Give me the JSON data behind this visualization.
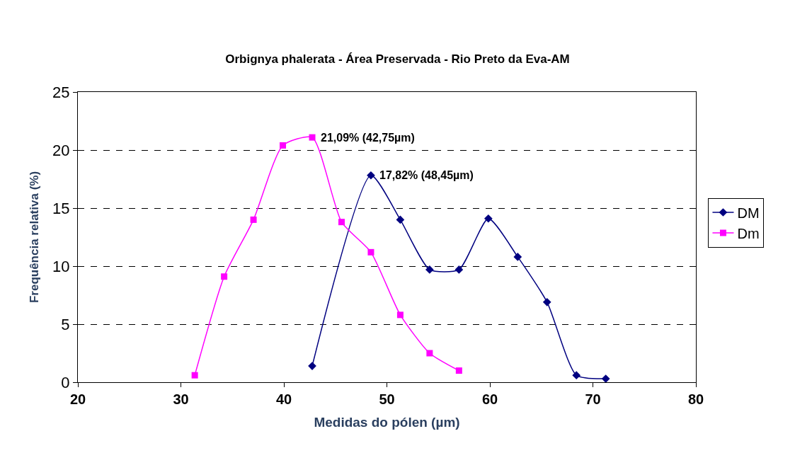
{
  "chart_data": {
    "type": "line",
    "title": "Orbignya phalerata - Área Preservada - Rio Preto da Eva-AM",
    "xlabel": "Medidas do pólen (µm)",
    "ylabel": "Frequência relativa (%)",
    "xlim": [
      20,
      80
    ],
    "xticks": [
      20,
      30,
      40,
      50,
      60,
      70,
      80
    ],
    "ylim": [
      0,
      25
    ],
    "yticks": [
      0,
      5,
      10,
      15,
      20,
      25
    ],
    "grid": "y",
    "legend": "right",
    "series": [
      {
        "name": "DM",
        "color": "#000080",
        "marker": "diamond",
        "x": [
          42.75,
          48.45,
          51.3,
          54.15,
          57.0,
          59.85,
          62.7,
          65.55,
          68.4,
          71.25
        ],
        "values": [
          1.4,
          17.82,
          14.0,
          9.7,
          9.7,
          14.1,
          10.8,
          6.9,
          0.6,
          0.3
        ]
      },
      {
        "name": "Dm",
        "color": "#ff00ff",
        "marker": "square",
        "x": [
          31.35,
          34.2,
          37.05,
          39.9,
          42.75,
          45.6,
          48.45,
          51.3,
          54.15,
          57.0
        ],
        "values": [
          0.6,
          9.1,
          14.0,
          20.4,
          21.09,
          13.8,
          11.2,
          5.8,
          2.5,
          1.0
        ]
      }
    ],
    "annotations": [
      {
        "text": "21,09% (42,75µm)",
        "x": 42.75,
        "y": 21.09
      },
      {
        "text": "17,82% (48,45µm)",
        "x": 48.45,
        "y": 17.82
      }
    ]
  }
}
